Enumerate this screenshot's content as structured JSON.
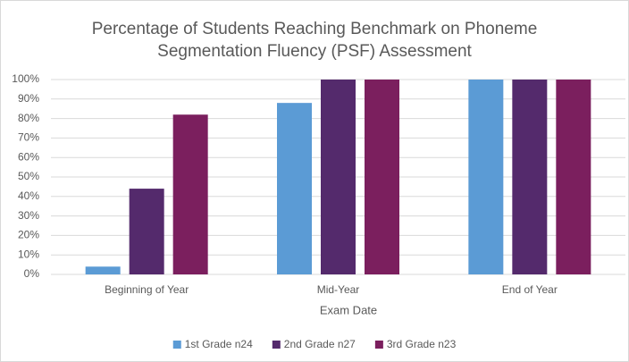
{
  "chart_data": {
    "type": "bar",
    "title": [
      "Percentage of Students Reaching Benchmark on Phoneme",
      "Segmentation Fluency (PSF) Assessment"
    ],
    "x_label": "Exam Date",
    "categories": [
      "Beginning of Year",
      "Mid-Year",
      "End of Year"
    ],
    "series": [
      {
        "name": "1st Grade n24",
        "color": "#5b9bd5",
        "values": [
          4,
          88,
          100
        ]
      },
      {
        "name": "2nd Grade n27",
        "color": "#542a6c",
        "values": [
          44,
          100,
          100
        ]
      },
      {
        "name": "3rd Grade n23",
        "color": "#7b1f5e",
        "values": [
          82,
          100,
          100
        ]
      }
    ],
    "ylim": [
      0,
      100
    ],
    "yticks": [
      {
        "value": 0,
        "label": "0%"
      },
      {
        "value": 10,
        "label": "10%"
      },
      {
        "value": 20,
        "label": "20%"
      },
      {
        "value": 30,
        "label": "30%"
      },
      {
        "value": 40,
        "label": "40%"
      },
      {
        "value": 50,
        "label": "50%"
      },
      {
        "value": 60,
        "label": "60%"
      },
      {
        "value": 70,
        "label": "70%"
      },
      {
        "value": 80,
        "label": "80%"
      },
      {
        "value": 90,
        "label": "90%"
      },
      {
        "value": 100,
        "label": "100%"
      }
    ],
    "grid": true,
    "legend": "bottom"
  }
}
